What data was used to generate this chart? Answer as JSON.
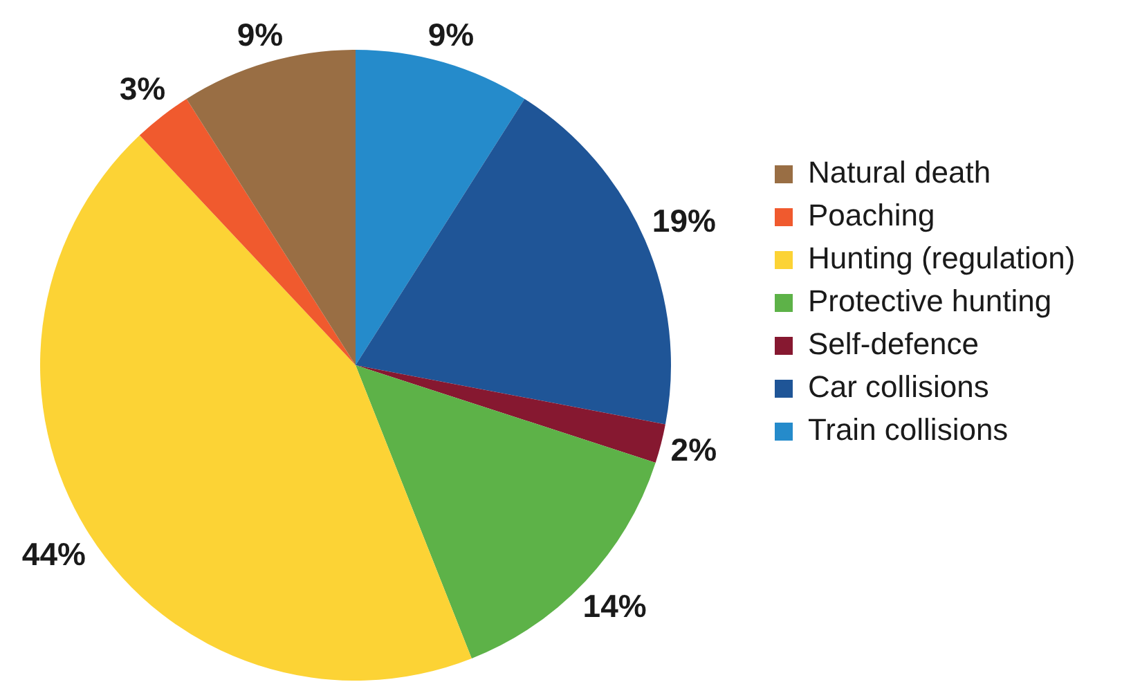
{
  "chart_data": {
    "type": "pie",
    "categories": [
      "Natural death",
      "Poaching",
      "Hunting (regulation)",
      "Protective hunting",
      "Self-defence",
      "Car collisions",
      "Train collisions"
    ],
    "values": [
      9,
      3,
      44,
      14,
      2,
      19,
      9
    ],
    "colors": [
      "#996e44",
      "#f05a2e",
      "#fcd335",
      "#5db248",
      "#861830",
      "#1f5597",
      "#258bcb"
    ],
    "value_labels": [
      "9%",
      "3%",
      "44%",
      "14%",
      "2%",
      "19%",
      "9%"
    ],
    "legend": "right"
  }
}
